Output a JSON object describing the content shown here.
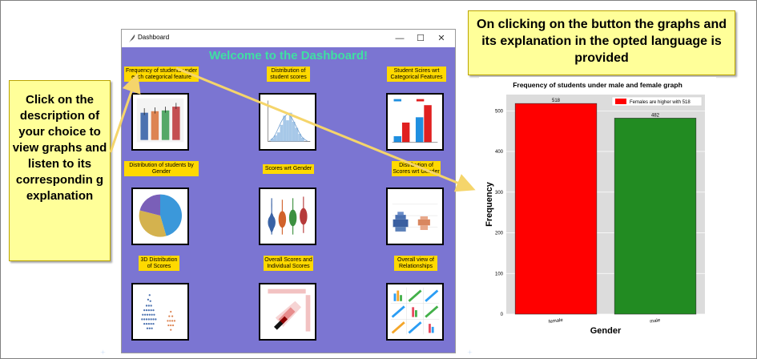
{
  "window": {
    "title": "Dashboard",
    "heading": "Welcome to the Dashboard!",
    "controls": {
      "minimize": "—",
      "maximize": "☐",
      "close": "✕"
    }
  },
  "buttons": [
    "Frequency of students under each categorical feature",
    "Distribution of student scores",
    "Student Scires wrt Categorical Features",
    "Distribution of students by Gender",
    "Scores wrt Gender",
    "Distribution of Scores wrt Gender",
    "3D Distribution of Scores",
    "Overall Scores and Individual Scores",
    "Overall view of Relationships"
  ],
  "callouts": {
    "left": "Click on the description of your choice to view graphs and listen to its correspondin g explanation",
    "top": "On clicking on the button the graphs and its explanation in the opted language is provided"
  },
  "thumbnails": {
    "bars_colors": [
      "#4c72b0",
      "#dd8452",
      "#55a868",
      "#c44e52"
    ],
    "pie_colors": [
      "#3b98da",
      "#d4b24e",
      "#7a5fb8"
    ],
    "violin_colors": [
      "#3a63a5",
      "#d1622a",
      "#3d9140",
      "#b63a3a"
    ]
  },
  "chart_data": {
    "type": "bar",
    "title": "Frequency of students under male and female graph",
    "categories": [
      "female",
      "male"
    ],
    "values": [
      518,
      482
    ],
    "colors": [
      "#ff0000",
      "#228b22"
    ],
    "xlabel": "Gender",
    "ylabel": "Frequency",
    "ylim": [
      0,
      540
    ],
    "yticks": [
      0,
      100,
      200,
      300,
      400,
      500
    ],
    "legend": {
      "label": "Females are higher with 518",
      "color": "#ff0000",
      "position": "top-right"
    },
    "grid": true,
    "plot_bg": "#dcdcdc"
  }
}
